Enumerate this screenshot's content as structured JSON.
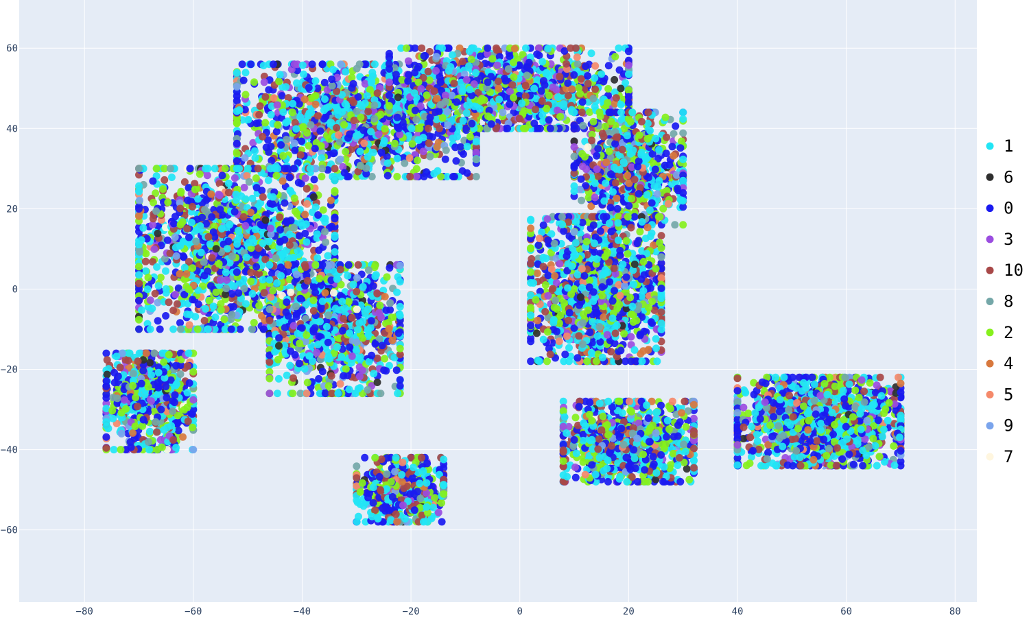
{
  "chart_data": {
    "type": "scatter",
    "title": "",
    "xlabel": "",
    "ylabel": "",
    "xlim": [
      -92,
      84
    ],
    "ylim": [
      -78,
      72
    ],
    "x_ticks": [
      -80,
      -60,
      -40,
      -20,
      0,
      20,
      40,
      60,
      80
    ],
    "y_ticks": [
      -60,
      -40,
      -20,
      0,
      20,
      40,
      60
    ],
    "x_tick_labels": [
      "−80",
      "−60",
      "−40",
      "−20",
      "0",
      "20",
      "40",
      "60",
      "80"
    ],
    "y_tick_labels": [
      "−60",
      "−40",
      "−20",
      "0",
      "20",
      "40",
      "60"
    ],
    "grid": true,
    "legend_position": "right",
    "series": [
      {
        "name": "1",
        "color": "#22e5f5",
        "weight": 3.0
      },
      {
        "name": "6",
        "color": "#2f2f2f",
        "weight": 0.15
      },
      {
        "name": "0",
        "color": "#1a1af0",
        "weight": 3.0
      },
      {
        "name": "3",
        "color": "#9b4de0",
        "weight": 0.6
      },
      {
        "name": "10",
        "color": "#a84848",
        "weight": 1.2
      },
      {
        "name": "8",
        "color": "#74a7a8",
        "weight": 0.6
      },
      {
        "name": "2",
        "color": "#86f01c",
        "weight": 1.8
      },
      {
        "name": "4",
        "color": "#d8783d",
        "weight": 0.35
      },
      {
        "name": "5",
        "color": "#f5896a",
        "weight": 0.2
      },
      {
        "name": "9",
        "color": "#7aa4ec",
        "weight": 0.35
      },
      {
        "name": "7",
        "color": "#fff6df",
        "weight": 0.05
      }
    ],
    "point_regions": [
      {
        "name": "left-arm-top",
        "center": [
          -30,
          42
        ],
        "spread": [
          22,
          14
        ],
        "count": 1300
      },
      {
        "name": "top-arc",
        "center": [
          -2,
          50
        ],
        "spread": [
          22,
          10
        ],
        "count": 1100
      },
      {
        "name": "right-upper-arc",
        "center": [
          20,
          30
        ],
        "spread": [
          10,
          14
        ],
        "count": 700
      },
      {
        "name": "left-arm-mid",
        "center": [
          -52,
          10
        ],
        "spread": [
          18,
          20
        ],
        "count": 1500
      },
      {
        "name": "left-arm-low",
        "center": [
          -68,
          -28
        ],
        "spread": [
          8,
          12
        ],
        "count": 700
      },
      {
        "name": "left-inner",
        "center": [
          -34,
          -10
        ],
        "spread": [
          12,
          16
        ],
        "count": 900
      },
      {
        "name": "left-tail",
        "center": [
          -22,
          -50
        ],
        "spread": [
          8,
          8
        ],
        "count": 500
      },
      {
        "name": "right-middle",
        "center": [
          14,
          0
        ],
        "spread": [
          12,
          18
        ],
        "count": 1200
      },
      {
        "name": "right-lower",
        "center": [
          20,
          -38
        ],
        "spread": [
          12,
          10
        ],
        "count": 900
      },
      {
        "name": "right-tail",
        "center": [
          55,
          -33
        ],
        "spread": [
          15,
          11
        ],
        "count": 1300
      }
    ]
  },
  "legend": {
    "items": [
      {
        "label": "1",
        "color": "#22e5f5"
      },
      {
        "label": "6",
        "color": "#2f2f2f"
      },
      {
        "label": "0",
        "color": "#1a1af0"
      },
      {
        "label": "3",
        "color": "#9b4de0"
      },
      {
        "label": "10",
        "color": "#a84848"
      },
      {
        "label": "8",
        "color": "#74a7a8"
      },
      {
        "label": "2",
        "color": "#86f01c"
      },
      {
        "label": "4",
        "color": "#d8783d"
      },
      {
        "label": "5",
        "color": "#f5896a"
      },
      {
        "label": "9",
        "color": "#7aa4ec"
      },
      {
        "label": "7",
        "color": "#fff6df"
      }
    ]
  },
  "colors": {
    "plot_background": "#e5ecf6",
    "grid": "#ffffff",
    "tick_text": "#2a3f5f"
  }
}
